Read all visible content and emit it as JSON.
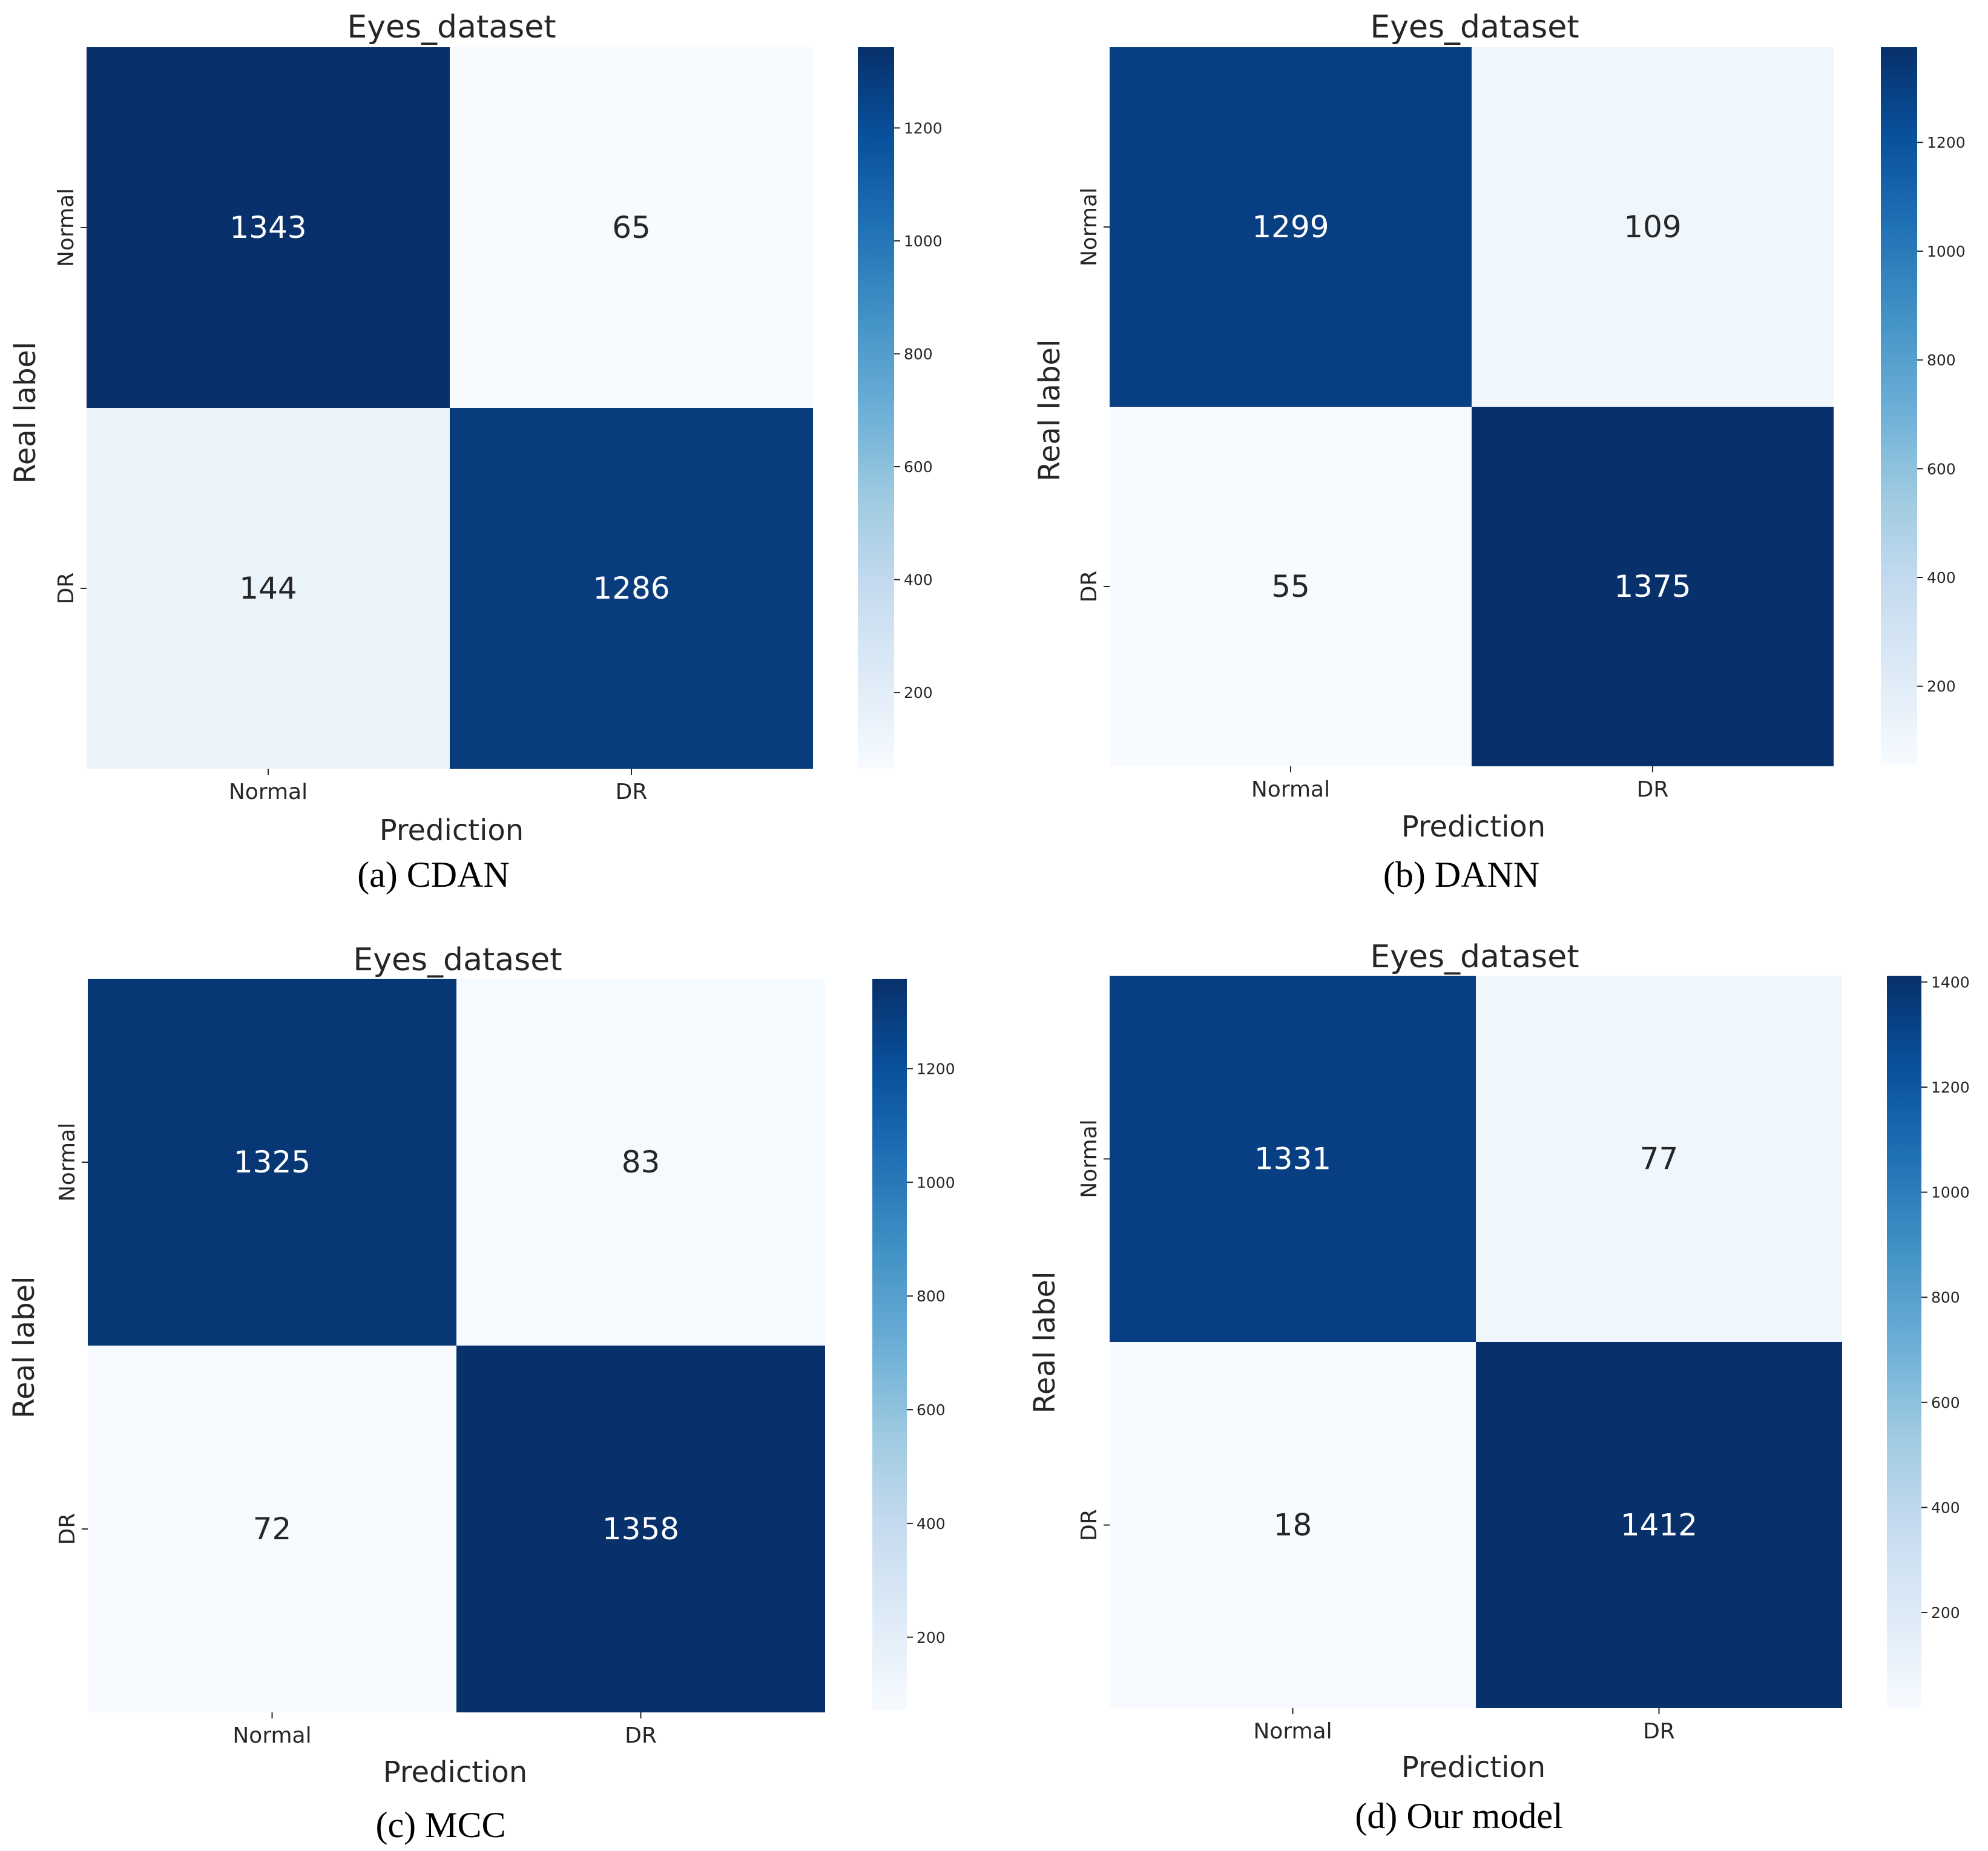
{
  "chart_data": [
    {
      "type": "heatmap",
      "title": "Eyes_dataset",
      "xlabel": "Prediction",
      "ylabel": "Real label",
      "x_categories": [
        "Normal",
        "DR"
      ],
      "y_categories": [
        "Normal",
        "DR"
      ],
      "values": [
        [
          1343,
          65
        ],
        [
          144,
          1286
        ]
      ],
      "colorbar": {
        "min": 65,
        "max": 1343,
        "ticks": [
          200,
          400,
          600,
          800,
          1000,
          1200
        ]
      },
      "caption": "(a) CDAN"
    },
    {
      "type": "heatmap",
      "title": "Eyes_dataset",
      "xlabel": "Prediction",
      "ylabel": "Real label",
      "x_categories": [
        "Normal",
        "DR"
      ],
      "y_categories": [
        "Normal",
        "DR"
      ],
      "values": [
        [
          1299,
          109
        ],
        [
          55,
          1375
        ]
      ],
      "colorbar": {
        "min": 55,
        "max": 1375,
        "ticks": [
          200,
          400,
          600,
          800,
          1000,
          1200
        ]
      },
      "caption": "(b) DANN"
    },
    {
      "type": "heatmap",
      "title": "Eyes_dataset",
      "xlabel": "Prediction",
      "ylabel": "Real label",
      "x_categories": [
        "Normal",
        "DR"
      ],
      "y_categories": [
        "Normal",
        "DR"
      ],
      "values": [
        [
          1325,
          83
        ],
        [
          72,
          1358
        ]
      ],
      "colorbar": {
        "min": 72,
        "max": 1358,
        "ticks": [
          200,
          400,
          600,
          800,
          1000,
          1200
        ]
      },
      "caption": "(c) MCC"
    },
    {
      "type": "heatmap",
      "title": "Eyes_dataset",
      "xlabel": "Prediction",
      "ylabel": "Real label",
      "x_categories": [
        "Normal",
        "DR"
      ],
      "y_categories": [
        "Normal",
        "DR"
      ],
      "values": [
        [
          1331,
          77
        ],
        [
          18,
          1412
        ]
      ],
      "colorbar": {
        "min": 18,
        "max": 1412,
        "ticks": [
          200,
          400,
          600,
          800,
          1000,
          1200,
          1400
        ]
      },
      "caption": "(d) Our model"
    }
  ],
  "colors": {
    "low": "#f7fbff",
    "high": "#08306b",
    "dark_text": "#262626",
    "light_text": "#ffffff"
  }
}
